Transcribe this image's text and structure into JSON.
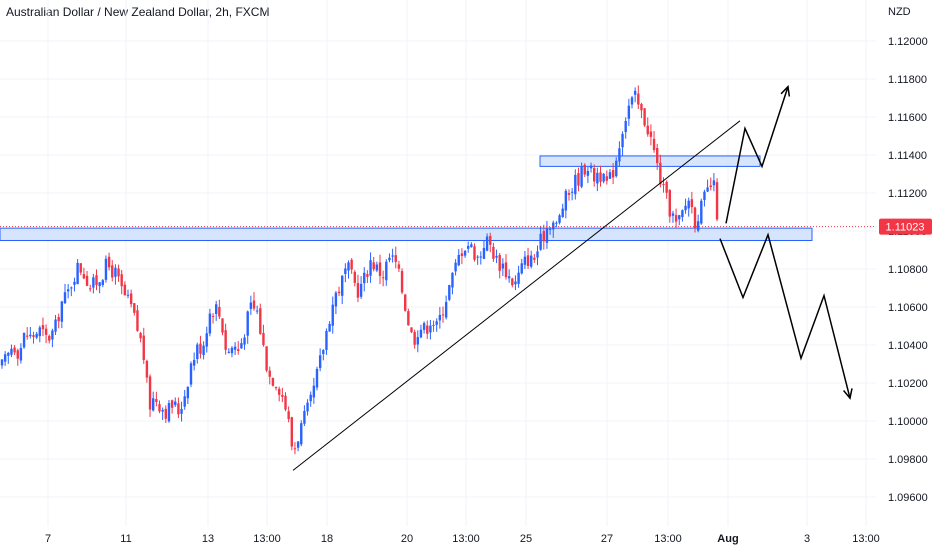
{
  "header": {
    "title": "Australian Dollar / New Zealand Dollar, 2h, FXCM"
  },
  "chart_data": {
    "type": "candlestick",
    "symbol": "AUDNZD",
    "timeframe": "2h",
    "source": "FXCM",
    "currency_label": "NZD",
    "ylim": [
      1.095,
      1.121
    ],
    "y_ticks": [
      "1.12000",
      "1.11800",
      "1.11600",
      "1.11400",
      "1.11200",
      "1.11000",
      "1.10800",
      "1.10600",
      "1.10400",
      "1.10200",
      "1.10000",
      "1.09800",
      "1.09600"
    ],
    "x_ticks": [
      "7",
      "11",
      "13",
      "13:00",
      "18",
      "20",
      "13:00",
      "25",
      "27",
      "13:00",
      "Aug",
      "3",
      "13:00"
    ],
    "last_price": "1.11023",
    "last_price_value": 1.11023,
    "colors": {
      "up": "#2962ff",
      "down": "#f23645",
      "zone_fill": "#cfe0fb",
      "zone_border": "#2962ff",
      "price_label": "#f23645"
    },
    "close_path": [
      [
        0,
        1.1028
      ],
      [
        6,
        1.1033
      ],
      [
        12,
        1.1041
      ],
      [
        18,
        1.1036
      ],
      [
        24,
        1.1046
      ],
      [
        30,
        1.1044
      ],
      [
        38,
        1.1048
      ],
      [
        46,
        1.1043
      ],
      [
        54,
        1.1048
      ],
      [
        60,
        1.1062
      ],
      [
        66,
        1.1066
      ],
      [
        72,
        1.1076
      ],
      [
        78,
        1.1082
      ],
      [
        84,
        1.1077
      ],
      [
        90,
        1.107
      ],
      [
        98,
        1.1075
      ],
      [
        106,
        1.1082
      ],
      [
        114,
        1.1078
      ],
      [
        122,
        1.1067
      ],
      [
        130,
        1.106
      ],
      [
        136,
        1.1049
      ],
      [
        142,
        1.1038
      ],
      [
        148,
        1.1008
      ],
      [
        154,
        1.1013
      ],
      [
        160,
        1.1008
      ],
      [
        166,
        1.1005
      ],
      [
        172,
        1.1009
      ],
      [
        178,
        1.1005
      ],
      [
        184,
        1.1015
      ],
      [
        190,
        1.103
      ],
      [
        196,
        1.1038
      ],
      [
        202,
        1.104
      ],
      [
        208,
        1.1056
      ],
      [
        214,
        1.1061
      ],
      [
        220,
        1.1054
      ],
      [
        226,
        1.1035
      ],
      [
        232,
        1.104
      ],
      [
        238,
        1.1037
      ],
      [
        244,
        1.1049
      ],
      [
        250,
        1.106
      ],
      [
        256,
        1.1058
      ],
      [
        262,
        1.104
      ],
      [
        268,
        1.1024
      ],
      [
        274,
        1.1022
      ],
      [
        280,
        1.1016
      ],
      [
        286,
        1.1005
      ],
      [
        292,
        1.0983
      ],
      [
        298,
        1.0994
      ],
      [
        304,
        1.1002
      ],
      [
        310,
        1.101
      ],
      [
        316,
        1.1024
      ],
      [
        322,
        1.1038
      ],
      [
        328,
        1.1054
      ],
      [
        334,
        1.1066
      ],
      [
        340,
        1.1072
      ],
      [
        346,
        1.1081
      ],
      [
        352,
        1.1074
      ],
      [
        358,
        1.1068
      ],
      [
        364,
        1.1076
      ],
      [
        370,
        1.1085
      ],
      [
        376,
        1.108
      ],
      [
        382,
        1.1077
      ],
      [
        388,
        1.1086
      ],
      [
        394,
        1.1084
      ],
      [
        400,
        1.1072
      ],
      [
        406,
        1.1056
      ],
      [
        412,
        1.1042
      ],
      [
        418,
        1.105
      ],
      [
        424,
        1.1048
      ],
      [
        430,
        1.1054
      ],
      [
        436,
        1.1049
      ],
      [
        442,
        1.106
      ],
      [
        448,
        1.107
      ],
      [
        454,
        1.108
      ],
      [
        460,
        1.109
      ],
      [
        466,
        1.1094
      ],
      [
        472,
        1.109
      ],
      [
        478,
        1.1085
      ],
      [
        484,
        1.1096
      ],
      [
        490,
        1.1092
      ],
      [
        496,
        1.1084
      ],
      [
        502,
        1.1082
      ],
      [
        508,
        1.1076
      ],
      [
        514,
        1.1072
      ],
      [
        520,
        1.108
      ],
      [
        526,
        1.1086
      ],
      [
        532,
        1.1084
      ],
      [
        538,
        1.1092
      ],
      [
        544,
        1.11
      ],
      [
        550,
        1.1106
      ],
      [
        556,
        1.1102
      ],
      [
        562,
        1.1114
      ],
      [
        568,
        1.112
      ],
      [
        574,
        1.1126
      ],
      [
        580,
        1.113
      ],
      [
        586,
        1.1136
      ],
      [
        592,
        1.1128
      ],
      [
        598,
        1.1132
      ],
      [
        604,
        1.1124
      ],
      [
        610,
        1.1128
      ],
      [
        616,
        1.114
      ],
      [
        622,
        1.1156
      ],
      [
        628,
        1.1166
      ],
      [
        634,
        1.117
      ],
      [
        640,
        1.1162
      ],
      [
        646,
        1.1156
      ],
      [
        652,
        1.1144
      ],
      [
        658,
        1.113
      ],
      [
        664,
        1.1118
      ],
      [
        670,
        1.111
      ],
      [
        676,
        1.1102
      ],
      [
        682,
        1.111
      ],
      [
        688,
        1.1118
      ],
      [
        694,
        1.1106
      ],
      [
        700,
        1.1112
      ],
      [
        706,
        1.112
      ],
      [
        712,
        1.1126
      ],
      [
        718,
        1.1102
      ]
    ],
    "support_zones": [
      {
        "y_low": 1.1095,
        "y_high": 1.11015
      },
      {
        "y_low": 1.1134,
        "y_high": 1.11395
      }
    ],
    "trendline": {
      "from": [
        293,
        1.0974
      ],
      "to": [
        740,
        1.1158
      ]
    },
    "up_scenario_path": [
      [
        726,
        1.1104
      ],
      [
        745,
        1.1154
      ],
      [
        762,
        1.1134
      ],
      [
        788,
        1.1176
      ]
    ],
    "down_scenario_path": [
      [
        720,
        1.1096
      ],
      [
        743,
        1.1065
      ],
      [
        768,
        1.1098
      ],
      [
        801,
        1.1033
      ],
      [
        824,
        1.1066
      ],
      [
        850,
        1.1012
      ]
    ]
  }
}
